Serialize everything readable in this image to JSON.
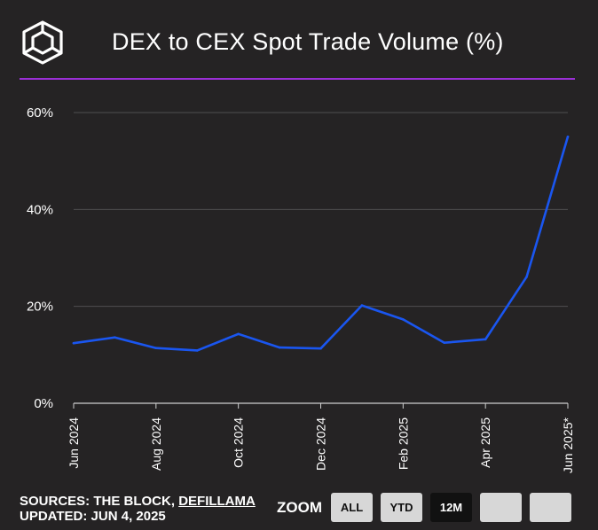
{
  "header": {
    "title": "DEX to CEX Spot Trade Volume (%)",
    "logo_icon": "the-block-cube-logo"
  },
  "footer": {
    "sources_prefix": "SOURCES: THE BLOCK, ",
    "sources_link": "DEFILLAMA",
    "updated": "UPDATED: JUN 4, 2025",
    "zoom_label": "ZOOM",
    "zoom_buttons": [
      {
        "label": "ALL",
        "active": false
      },
      {
        "label": "YTD",
        "active": false
      },
      {
        "label": "12M",
        "active": true
      },
      {
        "label": "",
        "active": false
      },
      {
        "label": "",
        "active": false
      }
    ]
  },
  "colors": {
    "background": "#252324",
    "line": "#1a56f0",
    "accent_rule": "#9b2fd6",
    "grid": "#4f4f4f"
  },
  "chart_data": {
    "type": "line",
    "title": "DEX to CEX Spot Trade Volume (%)",
    "xlabel": "",
    "ylabel": "",
    "ylim": [
      0,
      60
    ],
    "yticks": [
      0,
      20,
      40,
      60
    ],
    "ytick_labels": [
      "0%",
      "20%",
      "40%",
      "60%"
    ],
    "xtick_labels": [
      "Jun 2024",
      "Aug 2024",
      "Oct 2024",
      "Dec 2024",
      "Feb 2025",
      "Apr 2025",
      "Jun 2025*"
    ],
    "grid": true,
    "series": [
      {
        "x": [
          "Jun 2024",
          "Jul 2024",
          "Aug 2024",
          "Sep 2024",
          "Oct 2024",
          "Nov 2024",
          "Dec 2024",
          "Jan 2025",
          "Feb 2025",
          "Mar 2025",
          "Apr 2025",
          "May 2025",
          "Jun 2025*"
        ],
        "values": [
          12.4,
          13.6,
          11.4,
          10.9,
          14.3,
          11.5,
          11.3,
          20.2,
          17.3,
          12.5,
          13.2,
          26.1,
          55.0
        ]
      }
    ]
  }
}
